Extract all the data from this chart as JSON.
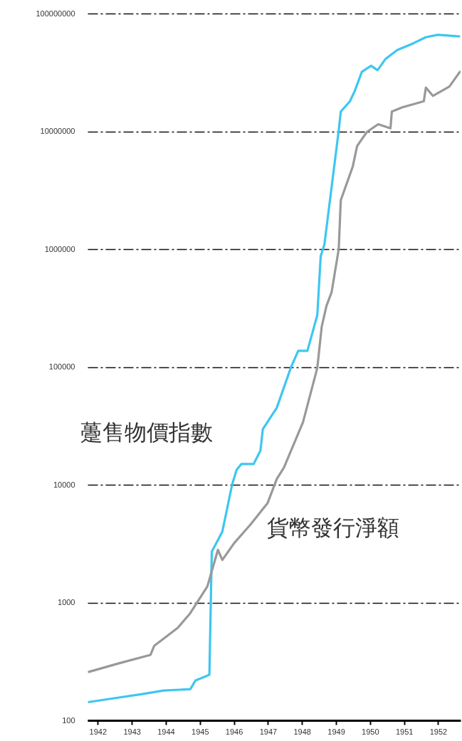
{
  "chart_data": {
    "type": "line",
    "log": true,
    "grid": "y",
    "legend": false,
    "xlim": [
      1941.7,
      1952.66
    ],
    "xticks": [
      1942,
      1943,
      1944,
      1945,
      1946,
      1947,
      1948,
      1949,
      1950,
      1951,
      1952
    ],
    "ylim": [
      100,
      100000000
    ],
    "yticks": [
      100,
      1000,
      10000,
      100000,
      1000000,
      10000000,
      100000000
    ],
    "series": [
      {
        "name": "躉售物價指數",
        "color": "#3ec6f0",
        "x": [
          1941.74,
          1942.47,
          1943.3,
          1943.93,
          1944.72,
          1944.87,
          1945.18,
          1945.28,
          1945.35,
          1945.66,
          1945.95,
          1946.08,
          1946.22,
          1946.58,
          1946.78,
          1946.85,
          1947.26,
          1947.68,
          1947.89,
          1948.16,
          1948.45,
          1948.55,
          1948.66,
          1949.08,
          1949.14,
          1949.41,
          1949.55,
          1949.76,
          1950.03,
          1950.22,
          1950.45,
          1950.8,
          1951.28,
          1951.64,
          1951.99,
          1952.62
        ],
        "values": [
          143,
          154,
          167,
          179,
          184,
          218,
          237,
          244,
          2700,
          4000,
          10100,
          13400,
          15000,
          15000,
          19500,
          29700,
          45000,
          100000,
          137000,
          137000,
          275000,
          870000,
          1100000,
          10200000,
          14700000,
          18000000,
          22000000,
          32000000,
          36000000,
          33000000,
          41000000,
          49000000,
          56000000,
          63000000,
          66000000,
          64000000
        ]
      },
      {
        "name": "貨幣發行淨額",
        "color": "#999999",
        "x": [
          1941.74,
          1942.62,
          1943.55,
          1943.66,
          1944.35,
          1944.7,
          1945.22,
          1945.53,
          1945.66,
          1946.01,
          1946.49,
          1946.99,
          1947.26,
          1947.47,
          1948.03,
          1948.45,
          1948.58,
          1948.72,
          1948.87,
          1949.08,
          1949.14,
          1949.49,
          1949.62,
          1949.91,
          1950.24,
          1950.6,
          1950.64,
          1950.95,
          1951.58,
          1951.64,
          1951.85,
          1952.33,
          1952.64
        ],
        "values": [
          258,
          305,
          360,
          430,
          610,
          800,
          1370,
          2800,
          2300,
          3200,
          4600,
          7000,
          11200,
          14000,
          34000,
          98000,
          220000,
          330000,
          430000,
          1000000,
          2600000,
          5000000,
          7500000,
          9900000,
          11500000,
          10600000,
          14700000,
          16000000,
          18000000,
          23500000,
          20000000,
          24000000,
          32000000
        ]
      }
    ]
  }
}
